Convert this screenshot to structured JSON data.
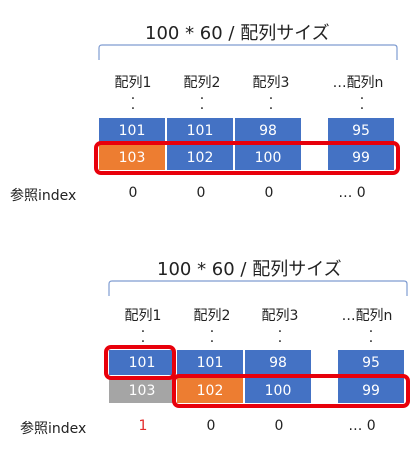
{
  "colors": {
    "blue": "#4472c4",
    "orange": "#ed7d31",
    "grey": "#a5a5a5",
    "highlight_red": "#e8000b",
    "index_red": "#e32a2a"
  },
  "top": {
    "title": "100 * 60 / 配列サイズ",
    "columns": [
      "配列1",
      "配列2",
      "配列3",
      "…配列n"
    ],
    "row1": [
      "101",
      "101",
      "98",
      "95"
    ],
    "row2": [
      "103",
      "102",
      "100",
      "99"
    ],
    "ref_label": "参照index",
    "indices": [
      "0",
      "0",
      "0",
      "…  0"
    ]
  },
  "bottom": {
    "title": "100 * 60 / 配列サイズ",
    "columns": [
      "配列1",
      "配列2",
      "配列3",
      "…配列n"
    ],
    "row1": [
      "101",
      "101",
      "98",
      "95"
    ],
    "row2": [
      "103",
      "102",
      "100",
      "99"
    ],
    "ref_label": "参照index",
    "indices": [
      "1",
      "0",
      "0",
      "…  0"
    ]
  }
}
